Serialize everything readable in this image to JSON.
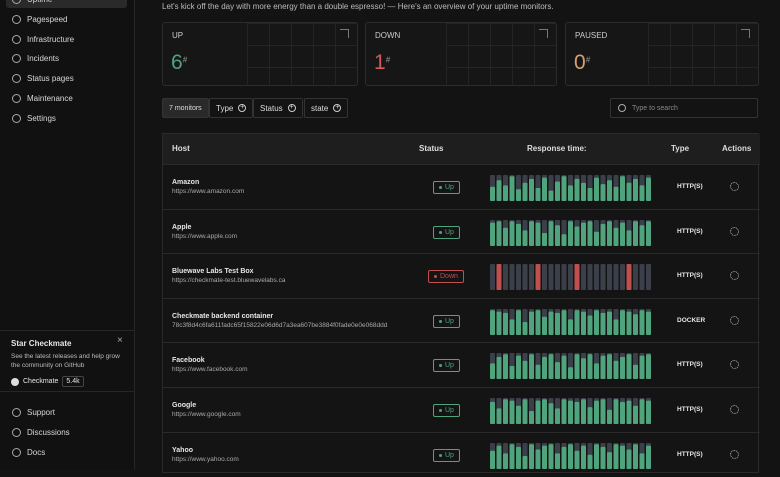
{
  "sidebar": {
    "nav": [
      "Uptime",
      "Pagespeed",
      "Infrastructure",
      "Incidents",
      "Status pages",
      "Maintenance",
      "Settings"
    ],
    "promo": {
      "title": "Star Checkmate",
      "text": "See the latest releases and help grow the community on GitHub",
      "button": "Checkmate",
      "stars": "5.4k"
    },
    "footer": [
      "Support",
      "Discussions",
      "Docs"
    ]
  },
  "intro": "Let's kick off the day with more energy than a double espresso! — Here's an overview of your uptime monitors.",
  "stats": [
    {
      "label": "UP",
      "value": 6,
      "suffix": "#",
      "color": "#4fa37d"
    },
    {
      "label": "DOWN",
      "value": 1,
      "suffix": "#",
      "color": "#d15a5a"
    },
    {
      "label": "PAUSED",
      "value": 0,
      "suffix": "#",
      "color": "#d9a06c"
    }
  ],
  "filters": {
    "count": "7 monitors",
    "chips": [
      "Type",
      "Status",
      "state"
    ],
    "search_placeholder": "Type to search"
  },
  "table": {
    "columns": [
      "Host",
      "Status",
      "Response time:",
      "Type",
      "Actions"
    ],
    "rows": [
      {
        "name": "Amazon",
        "url": "https://www.amazon.com",
        "status": "Up",
        "type": "HTTP(S)",
        "color": "#4fa37d",
        "response": [
          55,
          80,
          60,
          95,
          45,
          70,
          85,
          50,
          90,
          40,
          75,
          95,
          60,
          85,
          70,
          50,
          90,
          65,
          80,
          55,
          95,
          70,
          85,
          60,
          90
        ]
      },
      {
        "name": "Apple",
        "url": "https://www.apple.com",
        "status": "Up",
        "type": "HTTP(S)",
        "color": "#4fa37d",
        "response": [
          90,
          95,
          70,
          95,
          85,
          60,
          95,
          90,
          50,
          95,
          80,
          45,
          95,
          75,
          90,
          95,
          55,
          85,
          95,
          70,
          90,
          60,
          95,
          80,
          95
        ]
      },
      {
        "name": "Bluewave Labs Test Box",
        "url": "https://checkmate-test.bluewavelabs.ca",
        "status": "Down",
        "type": "HTTP(S)",
        "color": "#c0504d",
        "response": [
          0,
          100,
          0,
          0,
          0,
          0,
          0,
          100,
          0,
          0,
          0,
          0,
          0,
          100,
          0,
          0,
          0,
          0,
          0,
          0,
          0,
          100,
          0,
          0,
          0
        ]
      },
      {
        "name": "Checkmate backend container",
        "url": "78c3f8d4c6fa611fadc65f15822e06d6d7a3ea607be3884f0fade0e0e068ddd",
        "status": "Up",
        "type": "DOCKER",
        "color": "#4fa37d",
        "response": [
          95,
          90,
          85,
          60,
          95,
          50,
          90,
          95,
          70,
          90,
          85,
          95,
          60,
          95,
          90,
          75,
          95,
          85,
          90,
          60,
          95,
          90,
          80,
          95,
          90
        ]
      },
      {
        "name": "Facebook",
        "url": "https://www.facebook.com",
        "status": "Up",
        "type": "HTTP(S)",
        "color": "#4fa37d",
        "response": [
          60,
          85,
          95,
          50,
          90,
          70,
          95,
          55,
          85,
          95,
          65,
          90,
          45,
          95,
          80,
          95,
          60,
          90,
          95,
          70,
          85,
          95,
          55,
          90,
          95
        ]
      },
      {
        "name": "Google",
        "url": "https://www.google.com",
        "status": "Up",
        "type": "HTTP(S)",
        "color": "#4fa37d",
        "response": [
          85,
          60,
          95,
          90,
          70,
          95,
          50,
          90,
          95,
          80,
          60,
          95,
          90,
          85,
          95,
          65,
          90,
          95,
          55,
          95,
          85,
          90,
          70,
          95,
          90
        ]
      },
      {
        "name": "Yahoo",
        "url": "https://www.yahoo.com",
        "status": "Up",
        "type": "HTTP(S)",
        "color": "#4fa37d",
        "response": [
          70,
          90,
          60,
          95,
          85,
          50,
          95,
          75,
          90,
          95,
          60,
          85,
          95,
          70,
          90,
          55,
          95,
          85,
          65,
          95,
          90,
          75,
          95,
          60,
          90
        ]
      }
    ]
  }
}
